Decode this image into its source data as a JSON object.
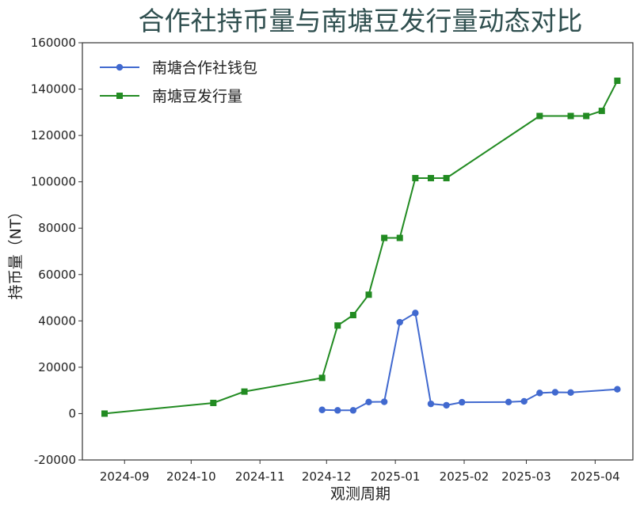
{
  "chart_data": {
    "type": "line",
    "title": "合作社持币量与南塘豆发行量动态对比",
    "xlabel": "观测周期",
    "ylabel": "持币量（NT）",
    "ylim": [
      -20000,
      160000
    ],
    "xlim": [
      "2024-08-13",
      "2025-04-18"
    ],
    "yticks": [
      -20000,
      0,
      20000,
      40000,
      60000,
      80000,
      100000,
      120000,
      140000,
      160000
    ],
    "xticks": [
      "2024-09",
      "2024-10",
      "2024-11",
      "2024-12",
      "2025-01",
      "2025-02",
      "2025-03",
      "2025-04"
    ],
    "grid": false,
    "legend_position": "upper-left",
    "series": [
      {
        "name": "南塘合作社钱包",
        "color": "#4169cf",
        "marker": "circle",
        "points": [
          {
            "x": "2024-11-29",
            "y": 1600
          },
          {
            "x": "2024-12-06",
            "y": 1400
          },
          {
            "x": "2024-12-13",
            "y": 1400
          },
          {
            "x": "2024-12-20",
            "y": 5000
          },
          {
            "x": "2024-12-27",
            "y": 5100
          },
          {
            "x": "2025-01-03",
            "y": 39400
          },
          {
            "x": "2025-01-10",
            "y": 43400
          },
          {
            "x": "2025-01-17",
            "y": 4200
          },
          {
            "x": "2025-01-24",
            "y": 3600
          },
          {
            "x": "2025-01-31",
            "y": 4900
          },
          {
            "x": "2025-02-21",
            "y": 5000
          },
          {
            "x": "2025-02-28",
            "y": 5300
          },
          {
            "x": "2025-03-07",
            "y": 8900
          },
          {
            "x": "2025-03-14",
            "y": 9200
          },
          {
            "x": "2025-03-21",
            "y": 9100
          },
          {
            "x": "2025-04-11",
            "y": 10500
          }
        ]
      },
      {
        "name": "南塘豆发行量",
        "color": "#228b22",
        "marker": "square",
        "points": [
          {
            "x": "2024-08-23",
            "y": 0
          },
          {
            "x": "2024-10-11",
            "y": 4600
          },
          {
            "x": "2024-10-25",
            "y": 9500
          },
          {
            "x": "2024-11-29",
            "y": 15400
          },
          {
            "x": "2024-12-06",
            "y": 38000
          },
          {
            "x": "2024-12-13",
            "y": 42500
          },
          {
            "x": "2024-12-20",
            "y": 51300
          },
          {
            "x": "2024-12-27",
            "y": 75800
          },
          {
            "x": "2025-01-03",
            "y": 75800
          },
          {
            "x": "2025-01-10",
            "y": 101600
          },
          {
            "x": "2025-01-17",
            "y": 101600
          },
          {
            "x": "2025-01-24",
            "y": 101600
          },
          {
            "x": "2025-03-07",
            "y": 128400
          },
          {
            "x": "2025-03-21",
            "y": 128400
          },
          {
            "x": "2025-03-28",
            "y": 128400
          },
          {
            "x": "2025-04-04",
            "y": 130600
          },
          {
            "x": "2025-04-11",
            "y": 143600
          }
        ]
      }
    ]
  }
}
